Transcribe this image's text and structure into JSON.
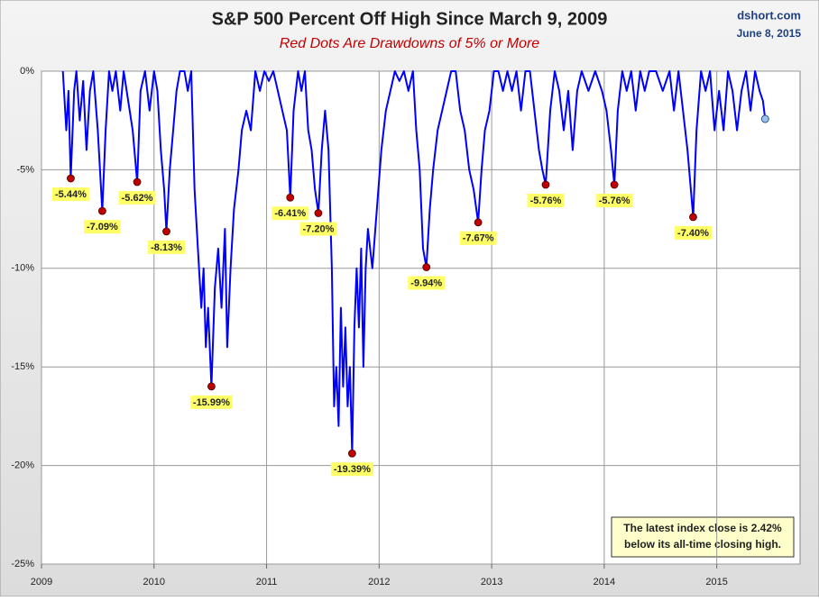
{
  "chart_data": {
    "type": "line",
    "title": "S&P 500 Percent Off High Since March 9, 2009",
    "subtitle": "Red Dots Are Drawdowns of 5% or More",
    "source": "dshort.com",
    "date": "June 8, 2015",
    "xlim": [
      2009,
      2015.74
    ],
    "xticks": [
      2009,
      2010,
      2011,
      2012,
      2013,
      2014,
      2015
    ],
    "ylim": [
      -25,
      0
    ],
    "yticks": [
      {
        "value": 0,
        "label": "0%"
      },
      {
        "value": -5,
        "label": "-5%"
      },
      {
        "value": -10,
        "label": "-10%"
      },
      {
        "value": -15,
        "label": "-15%"
      },
      {
        "value": -20,
        "label": "-20%"
      },
      {
        "value": -25,
        "label": "-25%"
      }
    ],
    "grid": true,
    "series": [
      {
        "color": "#0000ff",
        "x": [
          2009.19,
          2009.22,
          2009.24,
          2009.26,
          2009.29,
          2009.31,
          2009.34,
          2009.37,
          2009.4,
          2009.43,
          2009.46,
          2009.5,
          2009.54,
          2009.57,
          2009.6,
          2009.63,
          2009.66,
          2009.7,
          2009.73,
          2009.77,
          2009.81,
          2009.85,
          2009.88,
          2009.92,
          2009.96,
          2010.0,
          2010.03,
          2010.06,
          2010.09,
          2010.11,
          2010.14,
          2010.17,
          2010.2,
          2010.23,
          2010.27,
          2010.3,
          2010.33,
          2010.36,
          2010.39,
          2010.42,
          2010.44,
          2010.46,
          2010.48,
          2010.51,
          2010.54,
          2010.57,
          2010.6,
          2010.63,
          2010.65,
          2010.68,
          2010.71,
          2010.75,
          2010.78,
          2010.82,
          2010.86,
          2010.9,
          2010.94,
          2010.98,
          2011.02,
          2011.06,
          2011.1,
          2011.14,
          2011.18,
          2011.21,
          2011.24,
          2011.28,
          2011.31,
          2011.34,
          2011.37,
          2011.4,
          2011.43,
          2011.46,
          2011.49,
          2011.52,
          2011.55,
          2011.58,
          2011.6,
          2011.62,
          2011.64,
          2011.66,
          2011.68,
          2011.7,
          2011.72,
          2011.74,
          2011.76,
          2011.78,
          2011.8,
          2011.82,
          2011.84,
          2011.86,
          2011.88,
          2011.9,
          2011.94,
          2011.98,
          2012.02,
          2012.06,
          2012.1,
          2012.14,
          2012.18,
          2012.22,
          2012.26,
          2012.3,
          2012.33,
          2012.36,
          2012.39,
          2012.42,
          2012.45,
          2012.48,
          2012.52,
          2012.56,
          2012.6,
          2012.64,
          2012.68,
          2012.72,
          2012.76,
          2012.8,
          2012.84,
          2012.88,
          2012.91,
          2012.94,
          2012.98,
          2013.02,
          2013.06,
          2013.1,
          2013.14,
          2013.18,
          2013.22,
          2013.26,
          2013.3,
          2013.34,
          2013.38,
          2013.42,
          2013.45,
          2013.48,
          2013.52,
          2013.56,
          2013.6,
          2013.64,
          2013.68,
          2013.72,
          2013.76,
          2013.8,
          2013.86,
          2013.92,
          2013.98,
          2014.02,
          2014.06,
          2014.09,
          2014.12,
          2014.16,
          2014.2,
          2014.24,
          2014.28,
          2014.32,
          2014.36,
          2014.4,
          2014.46,
          2014.52,
          2014.58,
          2014.62,
          2014.66,
          2014.7,
          2014.74,
          2014.79,
          2014.82,
          2014.86,
          2014.9,
          2014.94,
          2014.98,
          2015.02,
          2015.06,
          2015.1,
          2015.14,
          2015.18,
          2015.22,
          2015.26,
          2015.3,
          2015.34,
          2015.38,
          2015.41,
          2015.43
        ],
        "values": [
          0,
          -3,
          -1,
          -5.44,
          -1,
          0,
          -2.5,
          -0.5,
          -4,
          -1,
          0,
          -3,
          -7.09,
          -3,
          0,
          -1,
          0,
          -2,
          0,
          -1.5,
          -3,
          -5.62,
          -1,
          0,
          -2,
          0,
          -1,
          -4,
          -6,
          -8.13,
          -5,
          -3,
          -1,
          0,
          0,
          -1,
          0,
          -6,
          -9,
          -12,
          -10,
          -14,
          -12,
          -15.99,
          -11,
          -9,
          -12,
          -8,
          -14,
          -10,
          -7,
          -5,
          -3,
          -2,
          -3,
          0,
          -1,
          0,
          -0.5,
          0,
          -1,
          -2,
          -3,
          -6.41,
          -2,
          0,
          -1,
          0,
          -3,
          -4,
          -6,
          -7.2,
          -4,
          -2,
          -4,
          -10,
          -17,
          -15,
          -18,
          -12,
          -16,
          -13,
          -17,
          -15,
          -19.39,
          -13,
          -10,
          -13,
          -9,
          -15,
          -10,
          -8,
          -10,
          -7,
          -4,
          -2,
          -1,
          0,
          -0.5,
          0,
          -1,
          0,
          -3,
          -5,
          -9,
          -9.94,
          -7,
          -5,
          -3,
          -2,
          -1,
          0,
          0,
          -2,
          -3,
          -5,
          -6,
          -7.67,
          -5,
          -3,
          -2,
          0,
          0,
          -1,
          0,
          -1,
          0,
          -2,
          0,
          0,
          -2,
          -4,
          -5,
          -5.76,
          -2,
          0,
          -1,
          -3,
          -1,
          -4,
          -1,
          0,
          -1,
          0,
          -1,
          -2,
          -4,
          -5.76,
          -2,
          0,
          -1,
          0,
          -2,
          0,
          -1,
          0,
          0,
          -1,
          0,
          -2,
          0,
          -2,
          -4,
          -7.4,
          -3,
          0,
          -1,
          0,
          -3,
          -1,
          -3,
          0,
          -1,
          -3,
          -1,
          0,
          -2,
          0,
          -1,
          -1.5,
          -2.42
        ]
      }
    ],
    "drawdowns": {
      "color": "#c00000",
      "x": [
        2009.26,
        2009.54,
        2009.85,
        2010.11,
        2010.51,
        2011.21,
        2011.46,
        2011.76,
        2012.42,
        2012.88,
        2013.48,
        2014.09,
        2014.79
      ],
      "values": [
        -5.44,
        -7.09,
        -5.62,
        -8.13,
        -15.99,
        -6.41,
        -7.2,
        -19.39,
        -9.94,
        -7.67,
        -5.76,
        -5.76,
        -7.4
      ],
      "value_labels": [
        "-5.44%",
        "-7.09%",
        "-5.62%",
        "-8.13%",
        "-15.99%",
        "-6.41%",
        "-7.20%",
        "-19.39%",
        "-9.94%",
        "-7.67%",
        "-5.76%",
        "-5.76%",
        "-7.40%"
      ]
    },
    "latest": {
      "x": 2015.43,
      "value": -2.42,
      "color": "#9dc3e6"
    },
    "annotation": [
      "The latest index close is 2.42%",
      "below its all-time closing high."
    ]
  }
}
